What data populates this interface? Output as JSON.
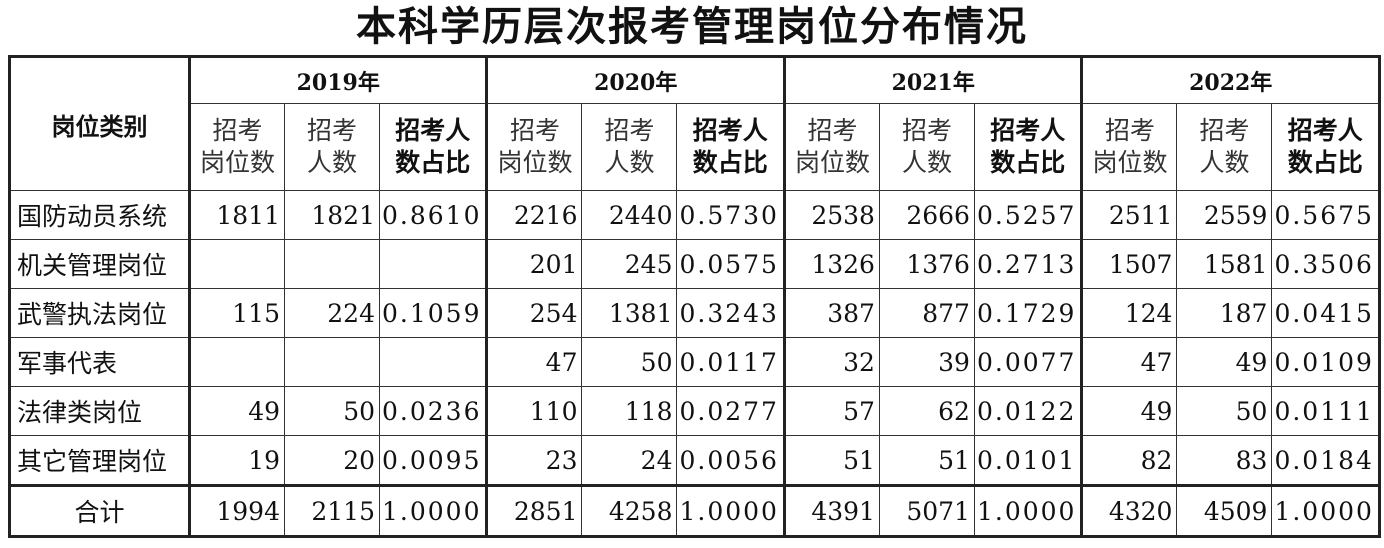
{
  "title": "本科学历层次报考管理岗位分布情况",
  "table": {
    "corner": "岗位类别",
    "years": [
      "2019年",
      "2020年",
      "2021年",
      "2022年"
    ],
    "subheaders": [
      [
        "招考",
        "岗位数"
      ],
      [
        "招考",
        "人数"
      ],
      [
        "招考人",
        "数占比"
      ]
    ],
    "rows": [
      [
        "国防动员系统",
        "1811",
        "1821",
        "0.8610",
        "2216",
        "2440",
        "0.5730",
        "2538",
        "2666",
        "0.5257",
        "2511",
        "2559",
        "0.5675"
      ],
      [
        "机关管理岗位",
        null,
        null,
        null,
        "201",
        "245",
        "0.0575",
        "1326",
        "1376",
        "0.2713",
        "1507",
        "1581",
        "0.3506"
      ],
      [
        "武警执法岗位",
        "115",
        "224",
        "0.1059",
        "254",
        "1381",
        "0.3243",
        "387",
        "877",
        "0.1729",
        "124",
        "187",
        "0.0415"
      ],
      [
        "军事代表",
        null,
        null,
        null,
        "47",
        "50",
        "0.0117",
        "32",
        "39",
        "0.0077",
        "47",
        "49",
        "0.0109"
      ],
      [
        "法律类岗位",
        "49",
        "50",
        "0.0236",
        "110",
        "118",
        "0.0277",
        "57",
        "62",
        "0.0122",
        "49",
        "50",
        "0.0111"
      ],
      [
        "其它管理岗位",
        "19",
        "20",
        "0.0095",
        "23",
        "24",
        "0.0056",
        "51",
        "51",
        "0.0101",
        "82",
        "83",
        "0.0184"
      ],
      [
        "合计",
        "1994",
        "2115",
        "1.0000",
        "2851",
        "4258",
        "1.0000",
        "4391",
        "5071",
        "1.0000",
        "4320",
        "4509",
        "1.0000"
      ]
    ]
  }
}
